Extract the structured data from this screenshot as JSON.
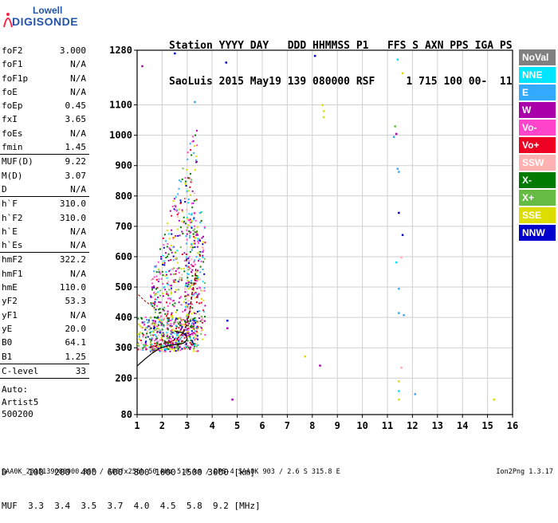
{
  "logo": {
    "line1": "Lowell",
    "line2": "DIGISONDE"
  },
  "header": {
    "labels": [
      "Station",
      "YYYY",
      "DAY",
      "DDD",
      "HHMMSS",
      "P1",
      "FFS",
      "S",
      "AXN",
      "PPS",
      "IGA",
      "PS"
    ],
    "values": [
      "SaoLuis",
      "2015",
      "May19",
      "139",
      "080000",
      "RSF",
      "1",
      "715",
      "100",
      "00-",
      "11"
    ]
  },
  "params": [
    {
      "label": "foF2",
      "value": "3.000"
    },
    {
      "label": "foF1",
      "value": "N/A"
    },
    {
      "label": "foF1p",
      "value": "N/A"
    },
    {
      "label": "foE",
      "value": "N/A"
    },
    {
      "label": "foEp",
      "value": "0.45"
    },
    {
      "label": "fxI",
      "value": "3.65"
    },
    {
      "label": "foEs",
      "value": "N/A"
    },
    {
      "label": "fmin",
      "value": "1.45"
    },
    {
      "label": "MUF(D)",
      "value": "9.22",
      "sep": true
    },
    {
      "label": "M(D)",
      "value": "3.07"
    },
    {
      "label": "D",
      "value": "N/A"
    },
    {
      "label": "h`F",
      "value": "310.0",
      "sep": true
    },
    {
      "label": "h`F2",
      "value": "310.0"
    },
    {
      "label": "h`E",
      "value": "N/A"
    },
    {
      "label": "h`Es",
      "value": "N/A"
    },
    {
      "label": "hmF2",
      "value": "322.2",
      "sep": true
    },
    {
      "label": "hmF1",
      "value": "N/A"
    },
    {
      "label": "hmE",
      "value": "110.0"
    },
    {
      "label": "yF2",
      "value": "53.3"
    },
    {
      "label": "yF1",
      "value": "N/A"
    },
    {
      "label": "yE",
      "value": "20.0"
    },
    {
      "label": "B0",
      "value": "64.1"
    },
    {
      "label": "B1",
      "value": "1.25"
    },
    {
      "label": "C-level",
      "value": "33",
      "sep": true
    }
  ],
  "auto": [
    "Auto:",
    "Artist5",
    "500200"
  ],
  "legend": [
    {
      "label": "NoVal",
      "color": "#808080"
    },
    {
      "label": "NNE",
      "color": "#00e5ff"
    },
    {
      "label": "E",
      "color": "#33aaff"
    },
    {
      "label": "W",
      "color": "#aa00aa"
    },
    {
      "label": "Vo-",
      "color": "#ff44cc"
    },
    {
      "label": "Vo+",
      "color": "#ee0022"
    },
    {
      "label": "SSW",
      "color": "#ffb0b0"
    },
    {
      "label": "X-",
      "color": "#007a00"
    },
    {
      "label": "X+",
      "color": "#66bb44"
    },
    {
      "label": "SSE",
      "color": "#dddd00"
    },
    {
      "label": "NNW",
      "color": "#0000cc"
    }
  ],
  "footer": {
    "d_label": "D",
    "d_values": [
      "100",
      "200",
      "400",
      "600",
      "800",
      "1000",
      "1500",
      "3000"
    ],
    "d_unit": "[km]",
    "muf_label": "MUF",
    "muf_values": [
      "3.3",
      "3.4",
      "3.5",
      "3.7",
      "4.0",
      "4.5",
      "5.8",
      "9.2"
    ],
    "muf_unit": "[MHz]"
  },
  "bottom_line": "SAA0K_2015139080000.RSF / 300fx256h 50 kHz 5.0 km / DPS-4 SAA0K 903 / 2.6 S 315.8 E",
  "version": "Ion2Png 1.3.17",
  "chart_data": {
    "type": "scatter",
    "xlim": [
      1,
      16
    ],
    "ylim": [
      80,
      1280
    ],
    "x_ticks": [
      1,
      2,
      3,
      4,
      5,
      6,
      7,
      8,
      9,
      10,
      11,
      12,
      13,
      14,
      15,
      16
    ],
    "y_ticks": [
      80,
      200,
      300,
      400,
      500,
      600,
      700,
      800,
      900,
      1000,
      1100,
      1280
    ],
    "grid": true,
    "profile": {
      "x": [
        1.0,
        1.3,
        1.6,
        1.9,
        2.2,
        2.5,
        2.7,
        2.85,
        2.95,
        3.0,
        2.95,
        2.85,
        2.7,
        2.5
      ],
      "y": [
        240,
        262,
        282,
        298,
        306,
        310,
        312,
        315,
        322,
        330,
        340,
        348,
        352,
        355
      ]
    },
    "trace": {
      "x": [
        1.5,
        1.8,
        2.1,
        2.4,
        2.6,
        2.8,
        2.9,
        3.0,
        3.05,
        3.1,
        3.15,
        3.2,
        3.3,
        3.35
      ],
      "y": [
        300,
        308,
        315,
        322,
        330,
        345,
        360,
        380,
        400,
        420,
        450,
        480,
        520,
        560
      ]
    },
    "isolated": [
      {
        "x": 4.55,
        "y": 1240,
        "c": "NNW"
      },
      {
        "x": 8.1,
        "y": 1262,
        "c": "NNW"
      },
      {
        "x": 11.4,
        "y": 1250,
        "c": "NNE"
      },
      {
        "x": 11.6,
        "y": 1205,
        "c": "SSE"
      },
      {
        "x": 8.4,
        "y": 1100,
        "c": "SSE"
      },
      {
        "x": 8.45,
        "y": 1080,
        "c": "SSE"
      },
      {
        "x": 8.45,
        "y": 1060,
        "c": "SSE"
      },
      {
        "x": 11.3,
        "y": 1030,
        "c": "X+"
      },
      {
        "x": 11.25,
        "y": 995,
        "c": "E"
      },
      {
        "x": 11.35,
        "y": 1005,
        "c": "W"
      },
      {
        "x": 11.4,
        "y": 890,
        "c": "E"
      },
      {
        "x": 11.45,
        "y": 880,
        "c": "E"
      },
      {
        "x": 11.45,
        "y": 745,
        "c": "NNW"
      },
      {
        "x": 11.6,
        "y": 672,
        "c": "NNW"
      },
      {
        "x": 11.55,
        "y": 598,
        "c": "SSW"
      },
      {
        "x": 11.35,
        "y": 582,
        "c": "NNE"
      },
      {
        "x": 11.45,
        "y": 495,
        "c": "E"
      },
      {
        "x": 11.45,
        "y": 415,
        "c": "E"
      },
      {
        "x": 11.65,
        "y": 408,
        "c": "E"
      },
      {
        "x": 4.6,
        "y": 390,
        "c": "NNW"
      },
      {
        "x": 4.6,
        "y": 365,
        "c": "W"
      },
      {
        "x": 7.7,
        "y": 272,
        "c": "SSE"
      },
      {
        "x": 8.3,
        "y": 242,
        "c": "W"
      },
      {
        "x": 11.55,
        "y": 235,
        "c": "SSW"
      },
      {
        "x": 11.45,
        "y": 190,
        "c": "SSE"
      },
      {
        "x": 11.45,
        "y": 158,
        "c": "NNE"
      },
      {
        "x": 12.1,
        "y": 148,
        "c": "E"
      },
      {
        "x": 11.45,
        "y": 130,
        "c": "SSE"
      },
      {
        "x": 15.25,
        "y": 130,
        "c": "SSE"
      },
      {
        "x": 4.8,
        "y": 130,
        "c": "W"
      },
      {
        "x": 1.2,
        "y": 1228,
        "c": "W"
      },
      {
        "x": 2.5,
        "y": 1270,
        "c": "NNW"
      },
      {
        "x": 3.3,
        "y": 1110,
        "c": "E"
      }
    ]
  }
}
